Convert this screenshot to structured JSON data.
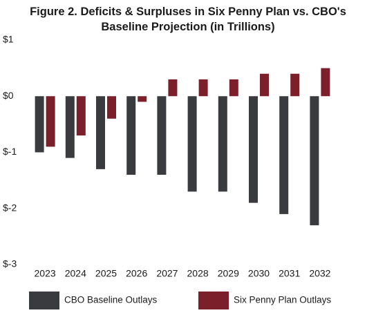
{
  "chart_data": {
    "type": "bar",
    "title": "Figure 2. Deficits & Surpluses in Six Penny Plan vs. CBO's Baseline Projection (in Trillions)",
    "categories": [
      "2023",
      "2024",
      "2025",
      "2026",
      "2027",
      "2028",
      "2029",
      "2030",
      "2031",
      "2032"
    ],
    "series": [
      {
        "name": "CBO Baseline Outlays",
        "color": "#3a3b3f",
        "values": [
          -1.0,
          -1.1,
          -1.3,
          -1.4,
          -1.4,
          -1.7,
          -1.7,
          -1.9,
          -2.1,
          -2.3
        ]
      },
      {
        "name": "Six Penny Plan Outlays",
        "color": "#7b1f2b",
        "values": [
          -0.9,
          -0.7,
          -0.4,
          -0.1,
          0.3,
          0.3,
          0.3,
          0.4,
          0.4,
          0.5
        ]
      }
    ],
    "ylim": [
      -3,
      1
    ],
    "yticks": [
      {
        "value": -3,
        "label": "$-3"
      },
      {
        "value": -2,
        "label": "$-2"
      },
      {
        "value": -1,
        "label": "$-1"
      },
      {
        "value": 0,
        "label": "$0"
      },
      {
        "value": 1,
        "label": "$1"
      }
    ],
    "grid": false,
    "legend": "bottom"
  }
}
